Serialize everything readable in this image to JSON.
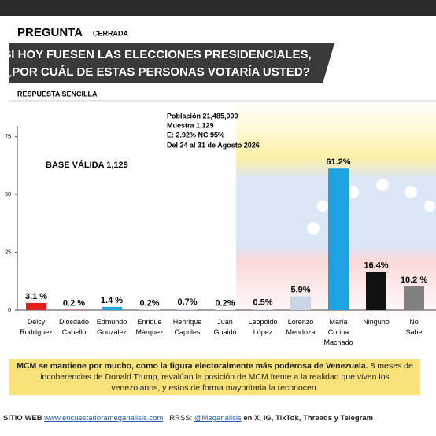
{
  "header": {
    "label": "PREGUNTA",
    "label_note": "CERRADA",
    "question": [
      "SI HOY FUESEN LAS ELECCIONES PRESIDENCIALES,",
      "¿POR CUÁL DE ESTAS PERSONAS VOTARÍA USTED?"
    ],
    "answer_type": "RESPUESTA SENCILLA"
  },
  "info": [
    "Población 21,485,000",
    "Muestra 1,129",
    "E: 2.92% NC 95%",
    "Del 24 al 31 de Agosto 2026"
  ],
  "chart_data": {
    "type": "bar",
    "annotation": "BASE VÁLIDA 1,129",
    "categories": [
      "Delcy Rodríguez",
      "Diosdado Cabello",
      "Edmundo González",
      "Enrique Márquez",
      "Henrique Capriles",
      "Juan Guaidó",
      "Leopoldo López",
      "Lorenzo Mendoza",
      "María Corina Machado",
      "Ninguno",
      "No Sabe"
    ],
    "values": [
      3.1,
      0.2,
      1.4,
      0.2,
      0.7,
      0.2,
      0.5,
      5.9,
      61.2,
      16.4,
      10.2
    ],
    "value_labels": [
      "3.1 %",
      "0.2 %",
      "1.4 %",
      "0.2%",
      "0.7%",
      "0.2%",
      "0.5%",
      "5.9%",
      "61.2%",
      "16.4%",
      "10.2 %"
    ],
    "colors": [
      "#e3211c",
      "#c0392b",
      "#2aa4e0",
      "#b9cfe8",
      "#c9d6e6",
      "#c9d6e6",
      "#c9d6e6",
      "#c9d6e6",
      "#1ea2e2",
      "#111111",
      "#808080"
    ],
    "ylim": [
      0,
      80
    ],
    "yticks": [
      0,
      25,
      50,
      75
    ],
    "grid": false
  },
  "note": {
    "bold": "MCM se mantiene por mucho, como la figura electoralmente más poderosa de Venezuela.",
    "text": "8 meses de incoherencias de Donald Trump, revalúan la posición de MCM frente a la realidad que viven los venezolanos, y estos de forma mayoritaria la reconocen."
  },
  "footer": {
    "site_label": "SITIO WEB",
    "site": "www.encuestadorameganalisis.com",
    "rrss_label": "RRSS:",
    "handle": "@Meganalisis",
    "networks": "en X, IG, TikTok, Threads y Telegram"
  }
}
